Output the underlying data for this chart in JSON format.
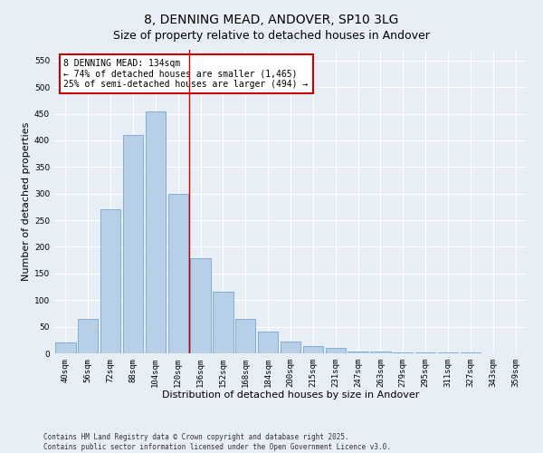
{
  "title": "8, DENNING MEAD, ANDOVER, SP10 3LG",
  "subtitle": "Size of property relative to detached houses in Andover",
  "xlabel": "Distribution of detached houses by size in Andover",
  "ylabel": "Number of detached properties",
  "categories": [
    "40sqm",
    "56sqm",
    "72sqm",
    "88sqm",
    "104sqm",
    "120sqm",
    "136sqm",
    "152sqm",
    "168sqm",
    "184sqm",
    "200sqm",
    "215sqm",
    "231sqm",
    "247sqm",
    "263sqm",
    "279sqm",
    "295sqm",
    "311sqm",
    "327sqm",
    "343sqm",
    "359sqm"
  ],
  "values": [
    20,
    65,
    270,
    410,
    455,
    300,
    178,
    115,
    65,
    40,
    22,
    13,
    10,
    4,
    4,
    1,
    1,
    1,
    1,
    0,
    0
  ],
  "bar_color": "#b8cfe8",
  "bar_edge_color": "#6699cc",
  "vline_color": "#cc0000",
  "annotation_text": "8 DENNING MEAD: 134sqm\n← 74% of detached houses are smaller (1,465)\n25% of semi-detached houses are larger (494) →",
  "annotation_box_color": "#ffffff",
  "annotation_box_edge": "#cc0000",
  "ylim": [
    0,
    570
  ],
  "yticks": [
    0,
    50,
    100,
    150,
    200,
    250,
    300,
    350,
    400,
    450,
    500,
    550
  ],
  "background_color": "#e8eef5",
  "grid_color": "#ffffff",
  "footer": "Contains HM Land Registry data © Crown copyright and database right 2025.\nContains public sector information licensed under the Open Government Licence v3.0.",
  "title_fontsize": 10,
  "subtitle_fontsize": 9,
  "xlabel_fontsize": 8,
  "ylabel_fontsize": 8,
  "tick_fontsize": 6.5,
  "annotation_fontsize": 7,
  "footer_fontsize": 5.5
}
